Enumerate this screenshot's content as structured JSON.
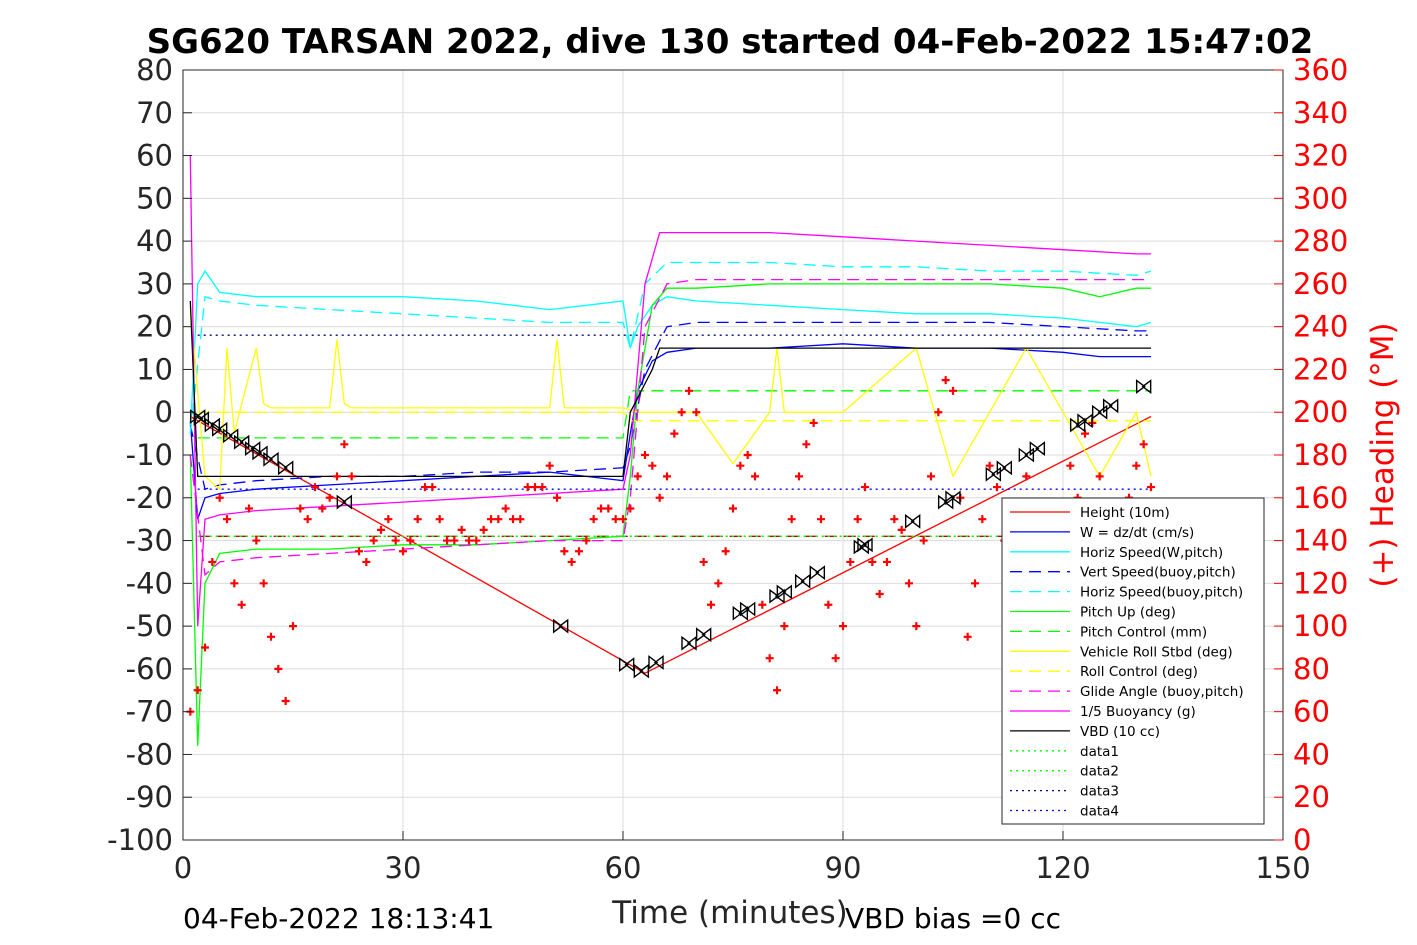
{
  "chart_data": {
    "type": "line",
    "title": "SG620 TARSAN 2022, dive 130 started 04-Feb-2022 15:47:02",
    "xlabel": "Time (minutes)",
    "ylabel_right": "(+) Heading (°M)",
    "xlim": [
      0,
      150
    ],
    "ylim_left": [
      -100,
      80
    ],
    "ylim_right": [
      0,
      360
    ],
    "x_ticks": [
      "0",
      "30",
      "60",
      "90",
      "120",
      "150"
    ],
    "y_ticks_left": [
      "80",
      "70",
      "60",
      "50",
      "40",
      "30",
      "20",
      "10",
      "0",
      "-10",
      "-20",
      "-30",
      "-40",
      "-50",
      "-60",
      "-70",
      "-80",
      "-90",
      "-100"
    ],
    "y_ticks_right": [
      "360",
      "340",
      "320",
      "300",
      "280",
      "260",
      "240",
      "220",
      "200",
      "180",
      "160",
      "140",
      "120",
      "100",
      "80",
      "60",
      "40",
      "20",
      "0"
    ],
    "grid": true,
    "legend_position": "bottom-right",
    "end_time": "04-Feb-2022 18:13:41",
    "vbd_bias": "VBD bias =0 cc",
    "series": [
      {
        "name": "Height (10m)",
        "color": "#ff0000",
        "style": "solid",
        "x": [
          1,
          63,
          132
        ],
        "y": [
          -1,
          -61,
          -1
        ]
      },
      {
        "name": "W = dz/dt (cm/s)",
        "color": "#0000ff",
        "style": "solid",
        "x": [
          1,
          2,
          3,
          5,
          10,
          20,
          30,
          40,
          50,
          55,
          60,
          61,
          62,
          64,
          66,
          70,
          80,
          90,
          100,
          110,
          120,
          125,
          130,
          132
        ],
        "y": [
          -2,
          -25,
          -20,
          -19,
          -18,
          -17,
          -16,
          -15,
          -14,
          -15,
          -16,
          -5,
          5,
          12,
          14,
          15,
          15,
          16,
          15,
          15,
          14,
          13,
          13,
          13
        ]
      },
      {
        "name": "Horiz Speed(W,pitch)",
        "color": "#00ffff",
        "style": "solid",
        "x": [
          1,
          2,
          3,
          5,
          10,
          20,
          30,
          40,
          50,
          55,
          60,
          61,
          62,
          64,
          66,
          70,
          80,
          90,
          100,
          110,
          120,
          125,
          130,
          132
        ],
        "y": [
          -5,
          30,
          33,
          28,
          27,
          27,
          27,
          26,
          24,
          25,
          26,
          15,
          20,
          25,
          27,
          26,
          25,
          24,
          23,
          23,
          22,
          21,
          20,
          21
        ]
      },
      {
        "name": "Vert Speed(buoy,pitch)",
        "color": "#0000ff",
        "style": "dash",
        "x": [
          1,
          3,
          5,
          10,
          20,
          30,
          40,
          50,
          60,
          61,
          63,
          66,
          70,
          80,
          90,
          100,
          110,
          120,
          130,
          132
        ],
        "y": [
          -3,
          -18,
          -17,
          -16,
          -15,
          -15,
          -14,
          -14,
          -13,
          -8,
          10,
          20,
          21,
          21,
          21,
          21,
          21,
          20,
          19,
          19
        ]
      },
      {
        "name": "Horiz Speed(buoy,pitch)",
        "color": "#00ffff",
        "style": "dash",
        "x": [
          1,
          3,
          5,
          10,
          20,
          30,
          40,
          50,
          60,
          61,
          63,
          66,
          70,
          80,
          90,
          100,
          110,
          120,
          130,
          132
        ],
        "y": [
          -5,
          27,
          26,
          25,
          24,
          23,
          22,
          21,
          21,
          15,
          30,
          35,
          35,
          35,
          34,
          34,
          33,
          33,
          32,
          33
        ]
      },
      {
        "name": "Pitch Up (deg)",
        "color": "#00ff00",
        "style": "solid",
        "x": [
          1,
          2,
          3,
          5,
          10,
          20,
          30,
          40,
          50,
          60,
          61,
          62,
          64,
          66,
          70,
          80,
          90,
          100,
          110,
          120,
          125,
          130,
          132
        ],
        "y": [
          -10,
          -78,
          -40,
          -33,
          -32,
          -32,
          -31,
          -31,
          -30,
          -29,
          -15,
          5,
          25,
          29,
          29,
          30,
          30,
          30,
          30,
          29,
          27,
          29,
          29
        ]
      },
      {
        "name": "Pitch Control (mm)",
        "color": "#00ff00",
        "style": "dash",
        "x": [
          2,
          60,
          61,
          132
        ],
        "y": [
          -6,
          -6,
          5,
          5
        ]
      },
      {
        "name": "Vehicle Roll Stbd (deg)",
        "color": "#ffff00",
        "style": "solid",
        "x": [
          1,
          3,
          5,
          6,
          7,
          8,
          10,
          11,
          12,
          20,
          21,
          22,
          23,
          30,
          50,
          51,
          52,
          60,
          62,
          70,
          75,
          80,
          81,
          82,
          90,
          100,
          105,
          110,
          115,
          120,
          125,
          130,
          132
        ],
        "y": [
          25,
          -15,
          -18,
          15,
          -5,
          2,
          15,
          2,
          1,
          1,
          17,
          2,
          1,
          1,
          1,
          17,
          1,
          1,
          0,
          0,
          -12,
          0,
          15,
          0,
          0,
          15,
          -15,
          0,
          15,
          0,
          -15,
          0,
          -15
        ]
      },
      {
        "name": "Roll Control (deg)",
        "color": "#ffff00",
        "style": "dash",
        "x": [
          2,
          60,
          61,
          132
        ],
        "y": [
          0,
          0,
          -2,
          -2
        ]
      },
      {
        "name": "Glide Angle (buoy,pitch)",
        "color": "#ff00ff",
        "style": "dash",
        "x": [
          1,
          3,
          5,
          10,
          20,
          30,
          40,
          50,
          60,
          61,
          63,
          66,
          70,
          80,
          90,
          100,
          110,
          120,
          130,
          132
        ],
        "y": [
          -10,
          -38,
          -35,
          -34,
          -33,
          -32,
          -31,
          -30,
          -30,
          -20,
          20,
          30,
          31,
          31,
          31,
          31,
          31,
          31,
          31,
          31
        ]
      },
      {
        "name": "1/5 Buoyancy (g)",
        "color": "#ff00ff",
        "style": "solid",
        "x": [
          1,
          2,
          3,
          5,
          10,
          20,
          30,
          40,
          50,
          60,
          61,
          63,
          65,
          70,
          80,
          90,
          100,
          110,
          120,
          130,
          132
        ],
        "y": [
          60,
          -50,
          -25,
          -24,
          -23,
          -22,
          -21,
          -20,
          -19,
          -18,
          -10,
          30,
          42,
          42,
          42,
          41,
          40,
          39,
          38,
          37,
          37
        ]
      },
      {
        "name": "VBD (10 cc)",
        "color": "#000000",
        "style": "solid",
        "x": [
          1,
          2,
          60,
          61,
          64,
          65,
          132
        ],
        "y": [
          26,
          -15,
          -15,
          0,
          10,
          15,
          15
        ]
      },
      {
        "name": "data1",
        "color": "#00ff00",
        "style": "dot",
        "x": [
          2,
          132
        ],
        "y": [
          -29,
          -29
        ]
      },
      {
        "name": "data2",
        "color": "#00ff00",
        "style": "dot",
        "x": [
          2,
          132
        ],
        "y": [
          -29,
          -29
        ]
      },
      {
        "name": "data3",
        "color": "#000080",
        "style": "dot",
        "x": [
          2,
          132
        ],
        "y": [
          18,
          18
        ]
      },
      {
        "name": "data4",
        "color": "#0000ff",
        "style": "dot",
        "x": [
          2,
          132
        ],
        "y": [
          -18,
          -18
        ]
      }
    ],
    "extra_lines": [
      {
        "color": "#c00000",
        "style": "dash",
        "x": [
          2,
          132
        ],
        "y": [
          -29,
          -29
        ]
      }
    ],
    "heading": {
      "color": "#ff0000",
      "marker": "+",
      "axis": "right",
      "x": [
        1,
        2,
        3,
        4,
        5,
        6,
        7,
        8,
        9,
        10,
        11,
        12,
        13,
        14,
        15,
        16,
        17,
        18,
        19,
        20,
        21,
        22,
        23,
        24,
        25,
        26,
        27,
        28,
        29,
        30,
        31,
        32,
        33,
        34,
        35,
        36,
        37,
        38,
        39,
        40,
        41,
        42,
        43,
        44,
        45,
        46,
        47,
        48,
        49,
        50,
        51,
        52,
        53,
        54,
        55,
        56,
        57,
        58,
        59,
        60,
        61,
        62,
        63,
        64,
        65,
        66,
        67,
        68,
        69,
        70,
        71,
        72,
        73,
        74,
        75,
        76,
        77,
        78,
        79,
        80,
        81,
        82,
        83,
        84,
        85,
        86,
        87,
        88,
        89,
        90,
        91,
        92,
        93,
        94,
        95,
        96,
        97,
        98,
        99,
        100,
        101,
        102,
        103,
        104,
        105,
        106,
        107,
        108,
        109,
        110,
        111,
        112,
        113,
        114,
        115,
        116,
        117,
        118,
        119,
        120,
        121,
        122,
        123,
        124,
        125,
        126,
        127,
        128,
        129,
        130,
        131,
        132
      ],
      "y": [
        60,
        70,
        90,
        130,
        160,
        150,
        120,
        110,
        155,
        140,
        120,
        95,
        80,
        65,
        100,
        155,
        150,
        165,
        155,
        160,
        170,
        185,
        170,
        135,
        130,
        140,
        145,
        150,
        140,
        135,
        140,
        150,
        165,
        165,
        150,
        140,
        140,
        145,
        140,
        140,
        145,
        150,
        150,
        155,
        150,
        150,
        165,
        165,
        165,
        175,
        160,
        135,
        130,
        135,
        140,
        150,
        155,
        155,
        150,
        150,
        155,
        170,
        180,
        175,
        160,
        170,
        190,
        200,
        210,
        200,
        130,
        110,
        120,
        135,
        155,
        175,
        180,
        170,
        110,
        85,
        70,
        100,
        150,
        170,
        185,
        195,
        150,
        110,
        85,
        100,
        130,
        150,
        165,
        130,
        115,
        130,
        150,
        145,
        120,
        100,
        140,
        170,
        200,
        215,
        210,
        160,
        95,
        120,
        150,
        175,
        165,
        140,
        120,
        130,
        170,
        145,
        130,
        150,
        140,
        155,
        175,
        160,
        190,
        195,
        170,
        145,
        125,
        140,
        160,
        175,
        185,
        165
      ]
    },
    "depth_markers": {
      "color": "#000000",
      "marker": "triangle-pair",
      "axis": "left",
      "x": [
        2,
        2.5,
        4,
        5,
        6.5,
        8,
        9.5,
        10.5,
        12,
        14,
        22,
        51.5,
        60.5,
        62.5,
        64.5,
        69,
        71,
        76,
        77,
        81,
        82,
        84.5,
        86.5,
        92.5,
        93,
        99.5,
        104,
        105,
        110.5,
        112,
        115,
        116.5,
        122,
        123,
        125,
        126.5,
        131
      ],
      "y": [
        -1,
        -1.5,
        -3,
        -4,
        -5.5,
        -7,
        -8.5,
        -9.5,
        -11,
        -13,
        -21,
        -50,
        -59,
        -60.5,
        -58.5,
        -54,
        -52,
        -47,
        -46,
        -43,
        -42,
        -39.5,
        -37.5,
        -31.5,
        -31,
        -25.5,
        -21,
        -20,
        -14.5,
        -13,
        -10,
        -8.5,
        -3,
        -2,
        0,
        1.5,
        6
      ]
    }
  }
}
